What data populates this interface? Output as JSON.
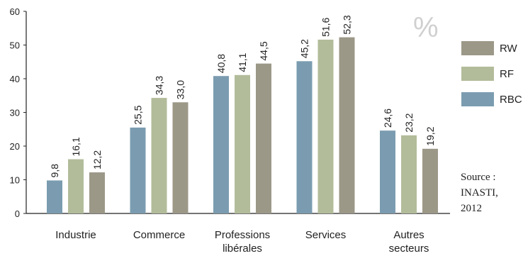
{
  "chart_data": {
    "type": "bar",
    "unit": "%",
    "categories": [
      [
        "Industrie"
      ],
      [
        "Commerce"
      ],
      [
        "Professions",
        "libérales"
      ],
      [
        "Services"
      ],
      [
        "Autres",
        "secteurs"
      ]
    ],
    "series": [
      {
        "name": "RBC",
        "color": "#7b9cb0",
        "values": [
          9.8,
          25.5,
          40.8,
          45.2,
          24.6
        ],
        "labels": [
          "9,8",
          "25,5",
          "40,8",
          "45,2",
          "24,6"
        ]
      },
      {
        "name": "RF",
        "color": "#b2bc9a",
        "values": [
          16.1,
          34.3,
          41.1,
          51.6,
          23.2
        ],
        "labels": [
          "16,1",
          "34,3",
          "41,1",
          "51,6",
          "23,2"
        ]
      },
      {
        "name": "RW",
        "color": "#9c9888",
        "values": [
          12.2,
          33.0,
          44.5,
          52.3,
          19.2
        ],
        "labels": [
          "12,2",
          "33,0",
          "44,5",
          "52,3",
          "19,2"
        ]
      }
    ],
    "legend_order": [
      "RW",
      "RF",
      "RBC"
    ],
    "legend_position": "right",
    "ylim": [
      0,
      60
    ],
    "yticks": [
      0,
      10,
      20,
      30,
      40,
      50,
      60
    ],
    "grid": false,
    "source": [
      "Source :",
      "INASTI,",
      "2012"
    ]
  }
}
